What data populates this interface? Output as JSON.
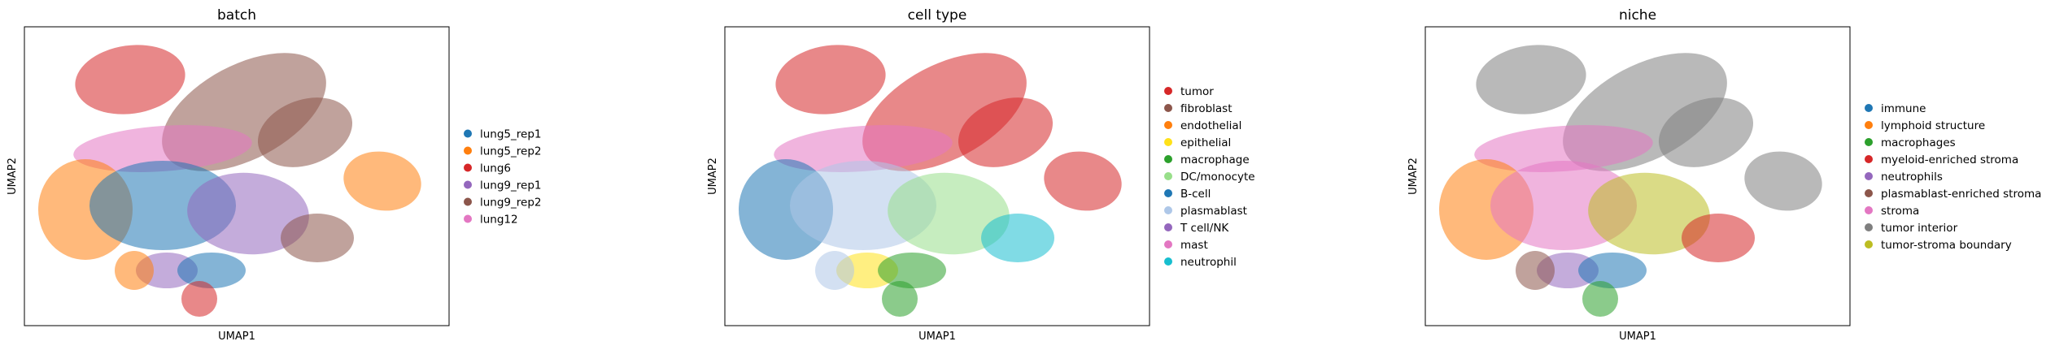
{
  "chart_data": [
    {
      "type": "scatter",
      "title": "batch",
      "xlabel": "UMAP1",
      "ylabel": "UMAP2",
      "grid": false,
      "legend_position": "right",
      "series": [
        {
          "name": "lung5_rep1",
          "color": "#1f77b4"
        },
        {
          "name": "lung5_rep2",
          "color": "#ff7f0e"
        },
        {
          "name": "lung6",
          "color": "#d62728"
        },
        {
          "name": "lung9_rep1",
          "color": "#9467bd"
        },
        {
          "name": "lung9_rep2",
          "color": "#8c564b"
        },
        {
          "name": "lung12",
          "color": "#e377c2"
        }
      ]
    },
    {
      "type": "scatter",
      "title": "cell type",
      "xlabel": "UMAP1",
      "ylabel": "UMAP2",
      "grid": false,
      "legend_position": "right",
      "series": [
        {
          "name": "tumor",
          "color": "#d62728"
        },
        {
          "name": "fibroblast",
          "color": "#8c564b"
        },
        {
          "name": "endothelial",
          "color": "#ff7f0e"
        },
        {
          "name": "epithelial",
          "color": "#ffe119"
        },
        {
          "name": "macrophage",
          "color": "#2ca02c"
        },
        {
          "name": "DC/monocyte",
          "color": "#98df8a"
        },
        {
          "name": "B-cell",
          "color": "#1f77b4"
        },
        {
          "name": "plasmablast",
          "color": "#aec7e8"
        },
        {
          "name": "T cell/NK",
          "color": "#9467bd"
        },
        {
          "name": "mast",
          "color": "#e377c2"
        },
        {
          "name": "neutrophil",
          "color": "#17becf"
        }
      ]
    },
    {
      "type": "scatter",
      "title": "niche",
      "xlabel": "UMAP1",
      "ylabel": "UMAP2",
      "grid": false,
      "legend_position": "right",
      "series": [
        {
          "name": "immune",
          "color": "#1f77b4"
        },
        {
          "name": "lymphoid structure",
          "color": "#ff7f0e"
        },
        {
          "name": "macrophages",
          "color": "#2ca02c"
        },
        {
          "name": "myeloid-enriched stroma",
          "color": "#d62728"
        },
        {
          "name": "neutrophils",
          "color": "#9467bd"
        },
        {
          "name": "plasmablast-enriched stroma",
          "color": "#8c564b"
        },
        {
          "name": "stroma",
          "color": "#e377c2"
        },
        {
          "name": "tumor interior",
          "color": "#7f7f7f"
        },
        {
          "name": "tumor-stroma boundary",
          "color": "#bcbd22"
        }
      ]
    }
  ]
}
